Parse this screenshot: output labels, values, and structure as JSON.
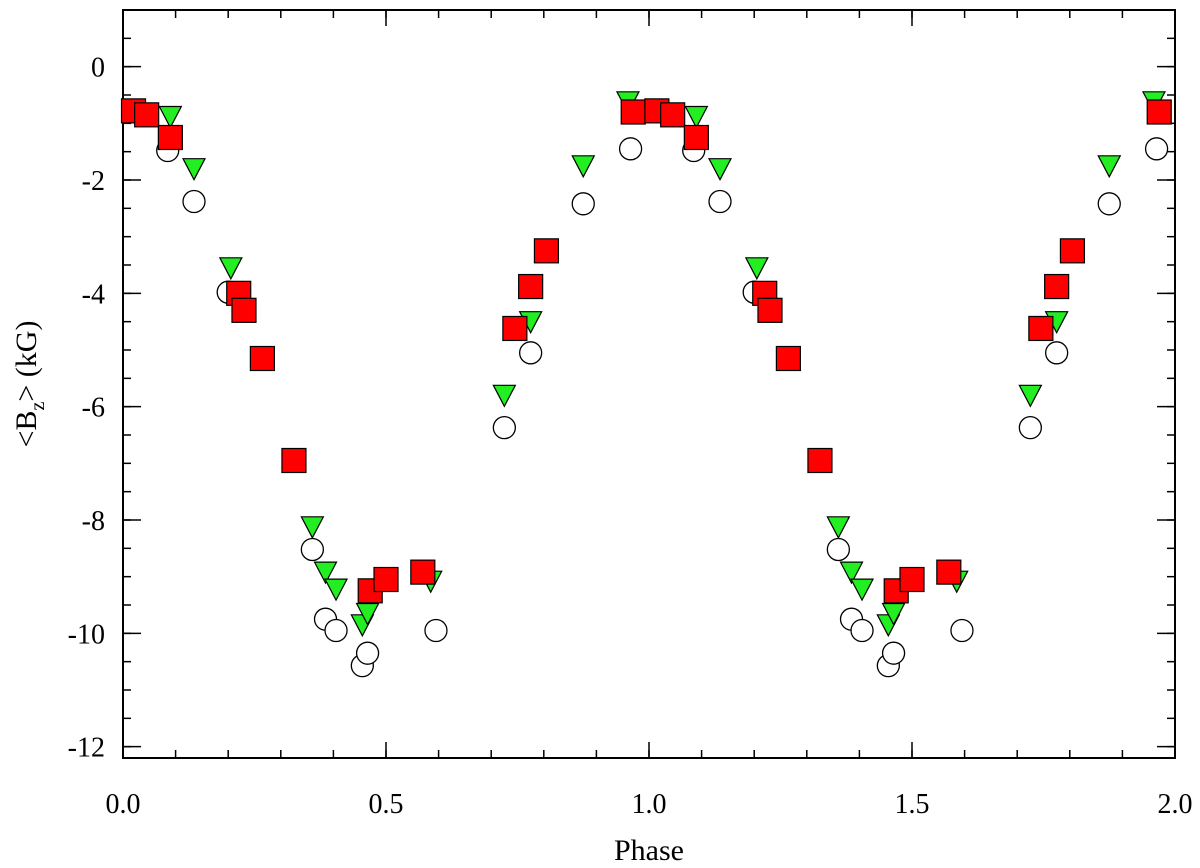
{
  "chart_data": {
    "type": "scatter",
    "xlabel": "Phase",
    "ylabel": {
      "prefix": "<B",
      "subscript": "z",
      "suffix": "> (kG)"
    },
    "xlim": [
      0.0,
      2.0
    ],
    "ylim": [
      -12.2,
      1.0
    ],
    "x_ticks": [
      0.0,
      0.5,
      1.0,
      1.5,
      2.0
    ],
    "x_tick_labels": [
      "0.0",
      "0.5",
      "1.0",
      "1.5",
      "2.0"
    ],
    "x_minor_step": 0.1,
    "y_ticks": [
      0,
      -2,
      -4,
      -6,
      -8,
      -10,
      -12
    ],
    "y_tick_labels": [
      "0",
      "-2",
      "-4",
      "-6",
      "-8",
      "-10",
      "-12"
    ],
    "y_minor_step": 0.5,
    "grid": false,
    "legend": "none",
    "series": [
      {
        "marker": "circle-open",
        "color": "#ffffff",
        "points": [
          [
            0.085,
            -1.48
          ],
          [
            0.135,
            -2.38
          ],
          [
            0.2,
            -3.98
          ],
          [
            0.36,
            -8.52
          ],
          [
            0.385,
            -9.75
          ],
          [
            0.405,
            -9.95
          ],
          [
            0.455,
            -10.57
          ],
          [
            0.465,
            -10.35
          ],
          [
            0.595,
            -9.95
          ],
          [
            0.725,
            -6.37
          ],
          [
            0.775,
            -5.05
          ],
          [
            0.875,
            -2.42
          ],
          [
            0.965,
            -1.45
          ],
          [
            1.085,
            -1.48
          ],
          [
            1.135,
            -2.38
          ],
          [
            1.2,
            -3.98
          ],
          [
            1.36,
            -8.52
          ],
          [
            1.385,
            -9.75
          ],
          [
            1.405,
            -9.95
          ],
          [
            1.455,
            -10.57
          ],
          [
            1.465,
            -10.35
          ],
          [
            1.595,
            -9.95
          ],
          [
            1.725,
            -6.37
          ],
          [
            1.775,
            -5.05
          ],
          [
            1.875,
            -2.42
          ],
          [
            1.965,
            -1.45
          ]
        ]
      },
      {
        "marker": "triangle-down",
        "color": "#22ee22",
        "points": [
          [
            0.09,
            -0.88
          ],
          [
            0.135,
            -1.8
          ],
          [
            0.205,
            -3.55
          ],
          [
            0.36,
            -8.12
          ],
          [
            0.385,
            -8.92
          ],
          [
            0.405,
            -9.22
          ],
          [
            0.455,
            -9.85
          ],
          [
            0.465,
            -9.65
          ],
          [
            0.585,
            -9.08
          ],
          [
            0.725,
            -5.8
          ],
          [
            0.775,
            -4.5
          ],
          [
            0.875,
            -1.75
          ],
          [
            0.96,
            -0.62
          ],
          [
            1.09,
            -0.88
          ],
          [
            1.135,
            -1.8
          ],
          [
            1.205,
            -3.55
          ],
          [
            1.36,
            -8.12
          ],
          [
            1.385,
            -8.92
          ],
          [
            1.405,
            -9.22
          ],
          [
            1.455,
            -9.85
          ],
          [
            1.465,
            -9.65
          ],
          [
            1.585,
            -9.08
          ],
          [
            1.725,
            -5.8
          ],
          [
            1.775,
            -4.5
          ],
          [
            1.875,
            -1.75
          ],
          [
            1.96,
            -0.62
          ]
        ]
      },
      {
        "marker": "square",
        "color": "#ff0000",
        "points": [
          [
            0.02,
            -0.78
          ],
          [
            0.045,
            -0.85
          ],
          [
            0.09,
            -1.25
          ],
          [
            0.22,
            -4.0
          ],
          [
            0.23,
            -4.3
          ],
          [
            0.265,
            -5.15
          ],
          [
            0.325,
            -6.95
          ],
          [
            0.47,
            -9.25
          ],
          [
            0.5,
            -9.05
          ],
          [
            0.57,
            -8.92
          ],
          [
            0.745,
            -4.62
          ],
          [
            0.775,
            -3.88
          ],
          [
            0.805,
            -3.25
          ],
          [
            0.97,
            -0.8
          ],
          [
            1.015,
            -0.78
          ],
          [
            1.045,
            -0.85
          ],
          [
            1.09,
            -1.25
          ],
          [
            1.22,
            -4.0
          ],
          [
            1.23,
            -4.3
          ],
          [
            1.265,
            -5.15
          ],
          [
            1.325,
            -6.95
          ],
          [
            1.47,
            -9.25
          ],
          [
            1.5,
            -9.05
          ],
          [
            1.57,
            -8.92
          ],
          [
            1.745,
            -4.62
          ],
          [
            1.775,
            -3.88
          ],
          [
            1.805,
            -3.25
          ],
          [
            1.97,
            -0.8
          ]
        ]
      }
    ]
  }
}
